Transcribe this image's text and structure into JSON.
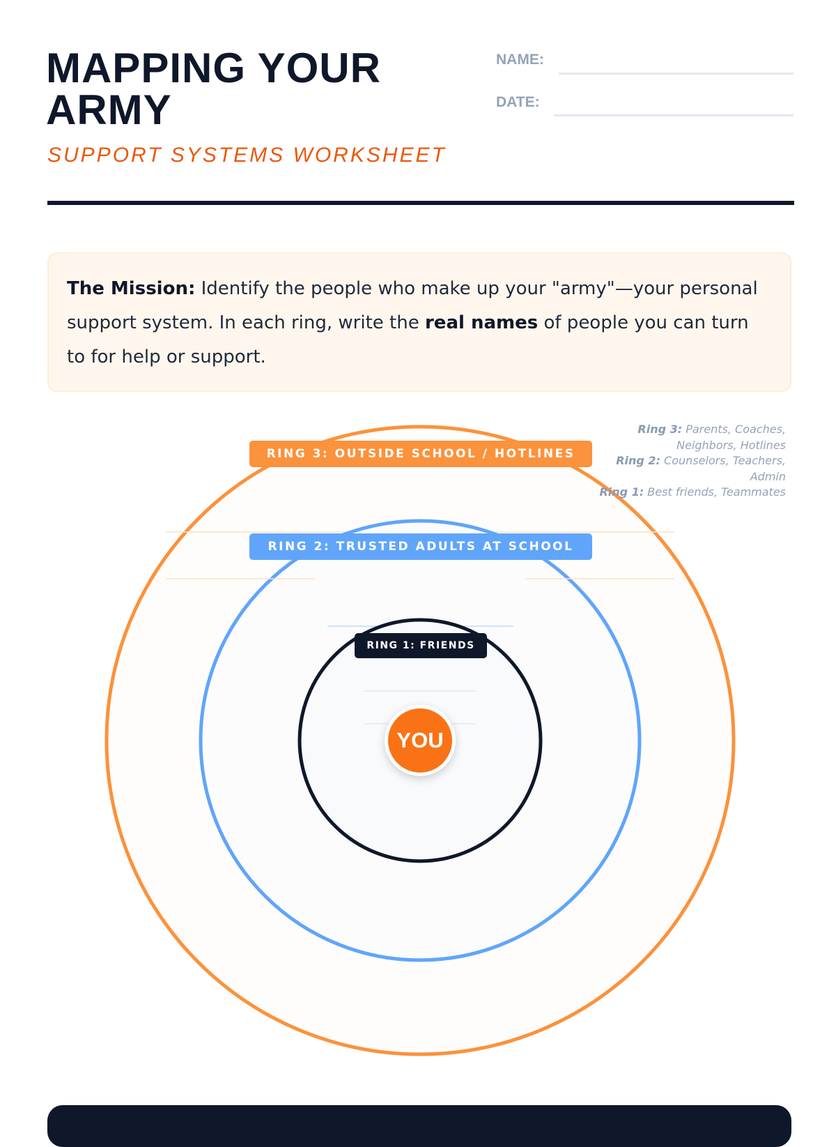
{
  "header": {
    "title_line1": "MAPPING YOUR",
    "title_line2": "ARMY",
    "subtitle": "SUPPORT SYSTEMS WORKSHEET",
    "name_label": "NAME:",
    "date_label": "DATE:",
    "name_value": "",
    "date_value": ""
  },
  "mission": {
    "lead": "The Mission:",
    "text1": " Identify the people who make up your \"army\"—your personal support system. In each ring, write the ",
    "bold": "real names",
    "text2": " of people you can turn to for help or support."
  },
  "rings": [
    {
      "label": "RING 3: OUTSIDE SCHOOL / HOTLINES",
      "color": "#fb923c"
    },
    {
      "label": "RING 2: TRUSTED ADULTS AT SCHOOL",
      "color": "#60a5fa"
    },
    {
      "label": "RING 1: FRIENDS",
      "color": "#0f172a"
    }
  ],
  "center_label": "YOU",
  "center_color": "#f97316",
  "legend": [
    {
      "key": "Ring 3:",
      "text": " Parents, Coaches,",
      "text_cont": "Neighbors, Hotlines"
    },
    {
      "key": "Ring 2:",
      "text": " Counselors, Teachers,",
      "text_cont": "Admin"
    },
    {
      "key": "Ring 1:",
      "text": " Best friends, Teammates"
    }
  ]
}
